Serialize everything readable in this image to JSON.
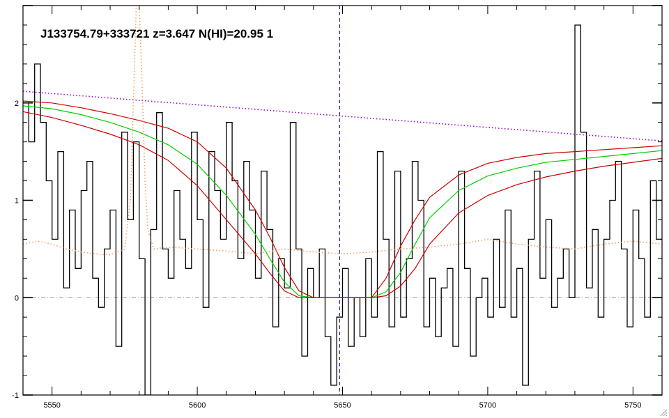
{
  "chart_data": {
    "type": "line",
    "title": "J133754.79+333721 z=3.647 N(HI)=20.95 1",
    "xlabel": "",
    "ylabel": "",
    "xlim": [
      5540,
      5760
    ],
    "ylim": [
      -1,
      3
    ],
    "grid": false,
    "x_ticks": [
      5550,
      5600,
      5650,
      5700,
      5750
    ],
    "y_ticks": [
      -1,
      0,
      1,
      2
    ],
    "x_tick_labels": [
      "5550",
      "5600",
      "5650",
      "5700",
      "5750"
    ],
    "y_tick_labels": [
      "-1",
      "0",
      "1",
      "2"
    ],
    "reference_line": {
      "x": 5649.0,
      "color": "#1a1ad0",
      "style": "dashed"
    },
    "zero_line": {
      "y": 0,
      "color": "#999999",
      "style": "dash-dot"
    },
    "colors": {
      "flux": "#000000",
      "model": "#00d000",
      "model_bounds": "#d00000",
      "continuum": "#9a00d0",
      "error": "#f0a060"
    },
    "series": [
      {
        "kind": "step",
        "color": "#000000",
        "x": [
          5541,
          5543,
          5545,
          5547,
          5549,
          5551,
          5553,
          5555,
          5557,
          5559,
          5561,
          5563,
          5565,
          5567,
          5569,
          5571,
          5573,
          5575,
          5577,
          5579,
          5581,
          5583,
          5585,
          5587,
          5589,
          5591,
          5593,
          5595,
          5597,
          5599,
          5601,
          5603,
          5605,
          5607,
          5609,
          5611,
          5613,
          5615,
          5617,
          5619,
          5621,
          5623,
          5625,
          5627,
          5629,
          5631,
          5633,
          5635,
          5637,
          5639,
          5641,
          5643,
          5645,
          5647,
          5649,
          5651,
          5653,
          5655,
          5657,
          5659,
          5661,
          5663,
          5665,
          5667,
          5669,
          5671,
          5673,
          5675,
          5677,
          5679,
          5681,
          5683,
          5685,
          5687,
          5689,
          5691,
          5693,
          5695,
          5697,
          5699,
          5701,
          5703,
          5705,
          5707,
          5709,
          5711,
          5713,
          5715,
          5717,
          5719,
          5721,
          5723,
          5725,
          5727,
          5729,
          5731,
          5733,
          5735,
          5737,
          5739,
          5741,
          5743,
          5745,
          5747,
          5749,
          5751,
          5753,
          5755,
          5757,
          5759
        ],
        "y": [
          2.0,
          1.6,
          2.4,
          1.8,
          1.2,
          0.6,
          1.5,
          0.1,
          0.9,
          0.3,
          1.1,
          1.4,
          0.2,
          -0.1,
          0.5,
          0.9,
          -0.5,
          1.7,
          0.8,
          1.6,
          0.4,
          -1.0,
          0.7,
          1.9,
          0.5,
          0.2,
          1.1,
          0.6,
          0.3,
          1.7,
          0.8,
          -0.1,
          1.5,
          1.1,
          0.6,
          1.8,
          1.2,
          0.4,
          1.4,
          0.9,
          0.2,
          1.3,
          0.7,
          -0.3,
          0.4,
          0.1,
          1.8,
          0.5,
          -0.6,
          0.3,
          0.0,
          0.5,
          -0.4,
          -0.9,
          -0.2,
          0.3,
          -0.5,
          0.0,
          -0.4,
          0.4,
          -0.2,
          1.5,
          0.6,
          -0.3,
          1.3,
          -0.2,
          0.4,
          1.4,
          1.0,
          -0.3,
          0.2,
          -0.4,
          0.1,
          0.3,
          -0.5,
          1.3,
          0.3,
          -0.6,
          0.0,
          0.2,
          -0.2,
          0.6,
          -0.1,
          0.9,
          -0.2,
          0.3,
          -0.9,
          0.6,
          1.3,
          0.2,
          0.8,
          -0.1,
          0.2,
          0.5,
          0.0,
          2.8,
          1.7,
          0.1,
          0.7,
          -0.2,
          0.6,
          1.0,
          1.4,
          0.5,
          -0.3,
          0.9,
          0.4,
          -0.2,
          1.2,
          0.6
        ]
      },
      {
        "kind": "line",
        "color": "#00d000",
        "x": [
          5540,
          5550,
          5560,
          5570,
          5580,
          5590,
          5600,
          5610,
          5620,
          5625,
          5630,
          5635,
          5640,
          5645,
          5650,
          5655,
          5660,
          5665,
          5670,
          5675,
          5680,
          5690,
          5700,
          5710,
          5720,
          5730,
          5740,
          5750,
          5760
        ],
        "y": [
          1.97,
          1.94,
          1.88,
          1.8,
          1.7,
          1.57,
          1.37,
          1.05,
          0.65,
          0.4,
          0.16,
          0.02,
          0.0,
          0.0,
          0.0,
          0.0,
          0.0,
          0.06,
          0.26,
          0.55,
          0.82,
          1.1,
          1.25,
          1.33,
          1.39,
          1.42,
          1.45,
          1.48,
          1.51
        ]
      },
      {
        "kind": "line",
        "color": "#d00000",
        "x": [
          5540,
          5550,
          5560,
          5570,
          5580,
          5590,
          5600,
          5610,
          5620,
          5625,
          5630,
          5635,
          5640,
          5645,
          5650,
          5655,
          5660,
          5665,
          5670,
          5675,
          5680,
          5690,
          5700,
          5710,
          5720,
          5730,
          5740,
          5750,
          5760
        ],
        "y": [
          2.02,
          2.0,
          1.95,
          1.89,
          1.82,
          1.74,
          1.6,
          1.33,
          0.9,
          0.62,
          0.31,
          0.07,
          0.0,
          0.0,
          0.0,
          0.0,
          0.0,
          0.2,
          0.53,
          0.8,
          1.03,
          1.26,
          1.38,
          1.44,
          1.48,
          1.5,
          1.52,
          1.54,
          1.56
        ]
      },
      {
        "kind": "line",
        "color": "#d00000",
        "x": [
          5540,
          5550,
          5560,
          5570,
          5580,
          5590,
          5600,
          5610,
          5620,
          5625,
          5630,
          5635,
          5640,
          5645,
          5650,
          5655,
          5660,
          5665,
          5670,
          5675,
          5680,
          5690,
          5700,
          5710,
          5720,
          5730,
          5740,
          5750,
          5760
        ],
        "y": [
          1.91,
          1.85,
          1.77,
          1.68,
          1.57,
          1.41,
          1.15,
          0.8,
          0.45,
          0.25,
          0.07,
          0.0,
          0.0,
          0.0,
          0.0,
          0.0,
          0.0,
          0.02,
          0.12,
          0.3,
          0.55,
          0.87,
          1.05,
          1.16,
          1.24,
          1.3,
          1.35,
          1.39,
          1.43
        ]
      },
      {
        "kind": "line",
        "color": "#9a00d0",
        "style": "dotted",
        "x": [
          5540,
          5760
        ],
        "y": [
          2.12,
          1.61
        ]
      },
      {
        "kind": "line",
        "color": "#f0a060",
        "style": "dotted",
        "x": [
          5540,
          5545,
          5550,
          5555,
          5560,
          5565,
          5570,
          5575,
          5577,
          5578,
          5579,
          5580,
          5581,
          5582,
          5583,
          5585,
          5590,
          5600,
          5610,
          5620,
          5630,
          5640,
          5650,
          5660,
          5670,
          5680,
          5690,
          5700,
          5710,
          5720,
          5730,
          5740,
          5750,
          5760
        ],
        "y": [
          0.55,
          0.58,
          0.55,
          0.5,
          0.47,
          0.45,
          0.44,
          0.5,
          1.0,
          2.0,
          3.0,
          3.0,
          2.2,
          1.2,
          0.7,
          0.5,
          0.52,
          0.5,
          0.48,
          0.45,
          0.5,
          0.47,
          0.45,
          0.47,
          0.5,
          0.52,
          0.55,
          0.6,
          0.55,
          0.52,
          0.5,
          0.55,
          0.58,
          0.55
        ]
      }
    ]
  }
}
